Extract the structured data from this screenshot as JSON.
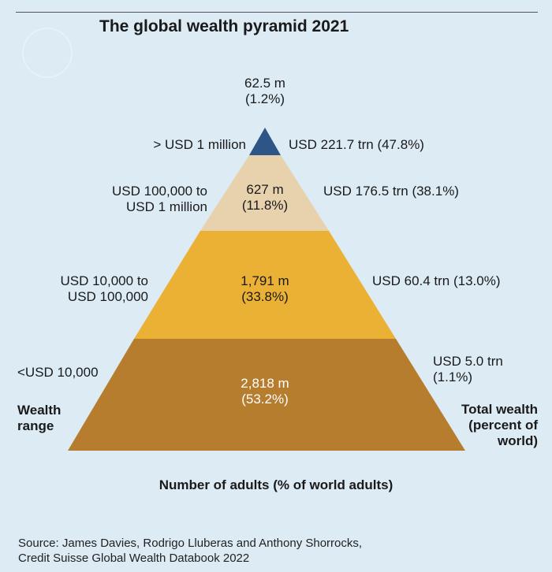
{
  "title": "The global wealth pyramid 2021",
  "chart_data": {
    "type": "pyramid",
    "tiers": [
      {
        "range": "> USD 1 million",
        "adults": "62.5 m",
        "adults_share": "(1.2%)",
        "wealth": "USD 221.7 trn (47.8%)",
        "adults_millions": 62.5,
        "adults_pct": 1.2,
        "wealth_trn": 221.7,
        "wealth_pct": 47.8,
        "color": "#2d5687"
      },
      {
        "range_line1": "USD 100,000 to",
        "range_line2": "USD 1 million",
        "adults": "627 m",
        "adults_share": "(11.8%)",
        "wealth": "USD 176.5 trn (38.1%)",
        "adults_millions": 627,
        "adults_pct": 11.8,
        "wealth_trn": 176.5,
        "wealth_pct": 38.1,
        "color": "#e7d2ad"
      },
      {
        "range_line1": "USD 10,000 to",
        "range_line2": "USD 100,000",
        "adults": "1,791 m",
        "adults_share": "(33.8%)",
        "wealth": "USD 60.4 trn (13.0%)",
        "adults_millions": 1791,
        "adults_pct": 33.8,
        "wealth_trn": 60.4,
        "wealth_pct": 13.0,
        "color": "#ebb134"
      },
      {
        "range": "<USD 10,000",
        "adults": "2,818 m",
        "adults_share": "(53.2%)",
        "wealth_line1": "USD 5.0 trn",
        "wealth_line2": "(1.1%)",
        "adults_millions": 2818,
        "adults_pct": 53.2,
        "wealth_trn": 5.0,
        "wealth_pct": 1.1,
        "color": "#b77d2f"
      }
    ]
  },
  "labels": {
    "wealth_range_line1": "Wealth",
    "wealth_range_line2": "range",
    "total_wealth_line1": "Total wealth",
    "total_wealth_line2": "(percent of",
    "total_wealth_line3": "world)",
    "x_axis": "Number of adults (% of world adults)"
  },
  "source": {
    "line1": "Source: James Davies, Rodrigo Lluberas and Anthony Shorrocks,",
    "line2": "Credit Suisse Global Wealth Databook 2022"
  }
}
